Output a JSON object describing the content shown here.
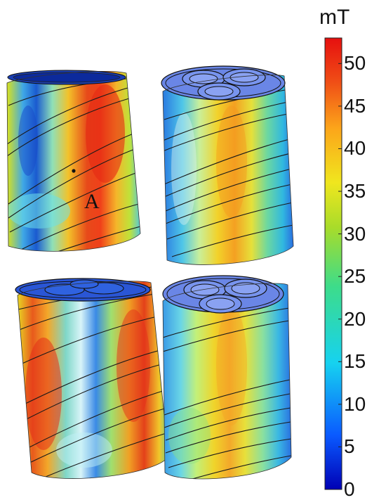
{
  "colorbar": {
    "unit": "mT",
    "ticks": [
      "50",
      "45",
      "40",
      "35",
      "30",
      "25",
      "20",
      "15",
      "10",
      "5",
      "0"
    ],
    "min": 0,
    "max": 53,
    "colors": [
      "#0000b4",
      "#0a5aff",
      "#16d2f0",
      "#3ddc8a",
      "#a8dc2a",
      "#f0e61e",
      "#fca51a",
      "#f05016",
      "#e60f0f"
    ]
  },
  "annotations": {
    "point_label": "A"
  },
  "panels": [
    {
      "position": "top-left",
      "view": "outer-surface"
    },
    {
      "position": "top-right",
      "view": "three-core-cross-section"
    },
    {
      "position": "bottom-left",
      "view": "three-core-cross-section"
    },
    {
      "position": "bottom-right",
      "view": "three-core-cross-section"
    }
  ]
}
